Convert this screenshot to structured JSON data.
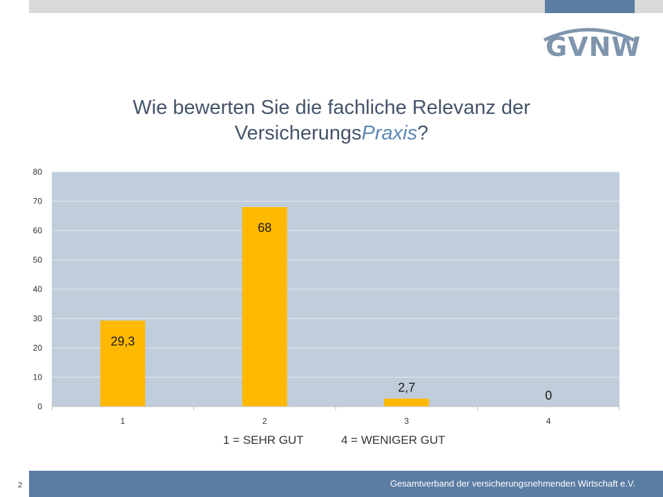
{
  "title": {
    "line1": "Wie bewerten Sie die fachliche Relevanz der",
    "line2_prefix": "Versicherungs",
    "line2_italic": "Praxis",
    "line2_suffix": "?"
  },
  "logo": {
    "text": "GVNW",
    "color": "#7f95ad"
  },
  "notes": {
    "scale_best": "1 = SEHR GUT",
    "scale_worst": "4 = WENIGER GUT"
  },
  "footer": {
    "text": "Gesamtverband der versicherungsnehmenden Wirtschaft e.V.",
    "page_number": "2"
  },
  "colors": {
    "bar": "#ffb900",
    "plot_bg": "#c0cdda",
    "accent": "#5b7ca3",
    "grid": "#e4e9ef"
  },
  "chart_data": {
    "type": "bar",
    "categories": [
      "1",
      "2",
      "3",
      "4"
    ],
    "values": [
      29.3,
      68,
      2.7,
      0
    ],
    "value_labels": [
      "29,3",
      "68",
      "2,7",
      "0"
    ],
    "ylim": [
      0,
      80
    ],
    "yticks": [
      "0",
      "10",
      "20",
      "30",
      "40",
      "50",
      "60",
      "70",
      "80"
    ],
    "grid": true,
    "legend": "none"
  }
}
